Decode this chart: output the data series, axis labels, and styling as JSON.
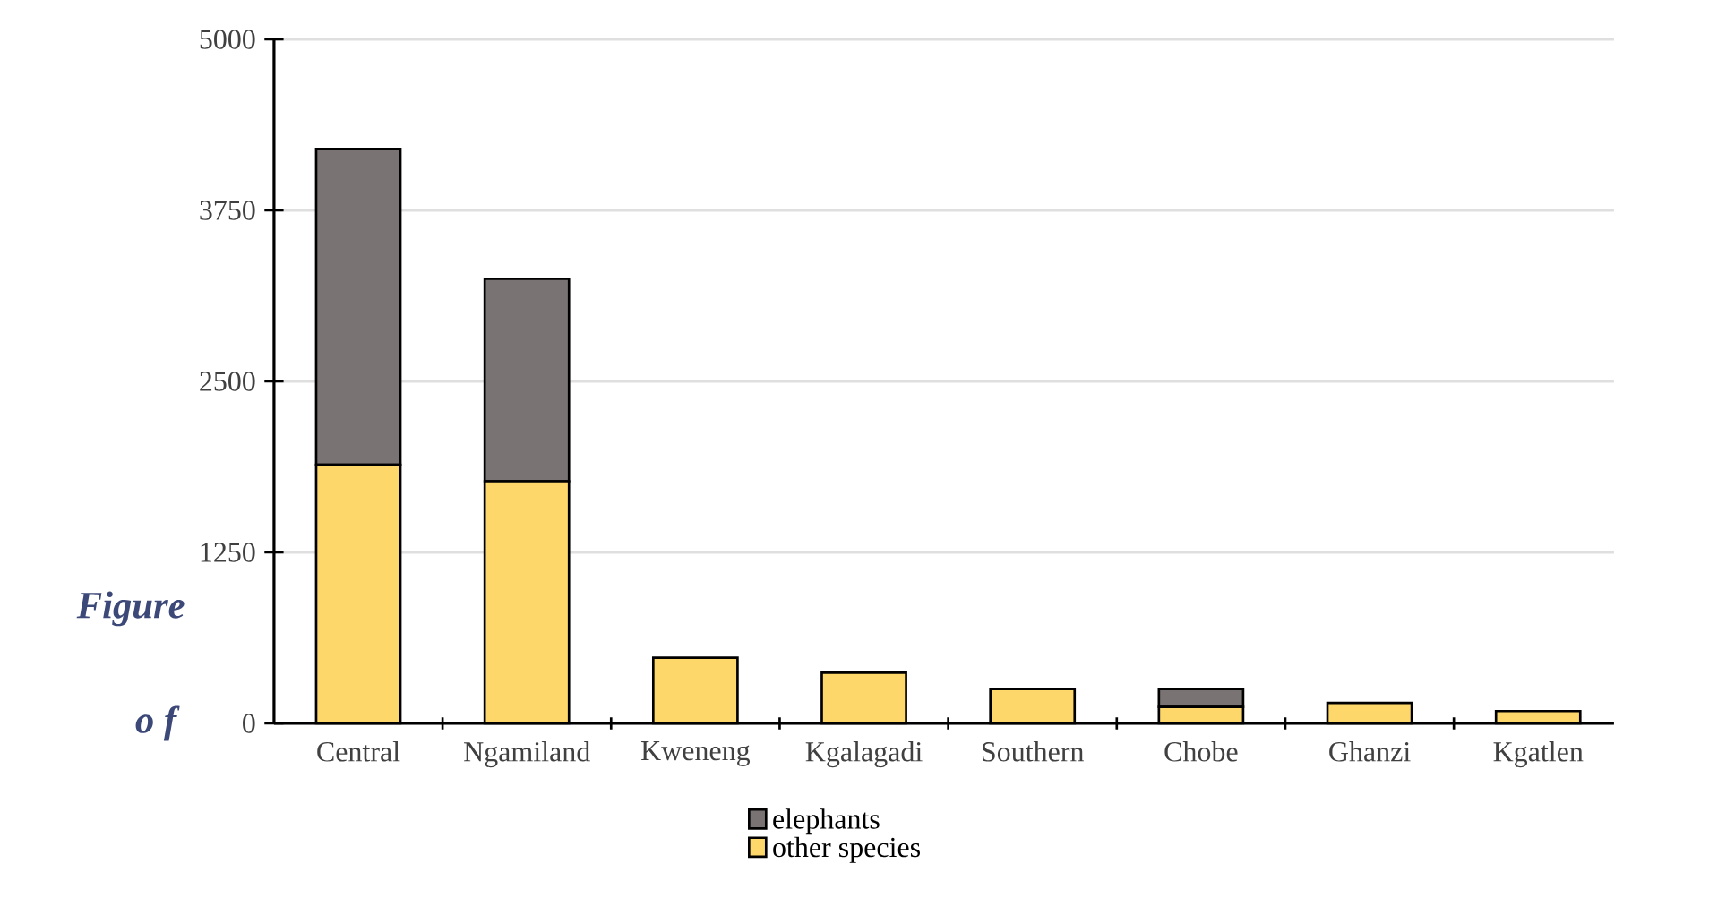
{
  "chart_data": {
    "type": "bar",
    "stacked": true,
    "categories": [
      "Central",
      "Ngamiland",
      "Kweneng",
      "Kgalagadi",
      "Southern",
      "Chobe",
      "Ghanzi",
      "Kgatlen"
    ],
    "series": [
      {
        "name": "other species",
        "color": "#fdd76a",
        "values": [
          1890,
          1770,
          480,
          370,
          250,
          120,
          150,
          90
        ]
      },
      {
        "name": "elephants",
        "color": "#7a7374",
        "values": [
          2310,
          1480,
          0,
          0,
          0,
          130,
          0,
          0
        ]
      }
    ],
    "ylim": [
      0,
      5000
    ],
    "yticks": [
      0,
      1250,
      2500,
      3750,
      5000
    ],
    "grid": "y",
    "legend": "bottom",
    "annotations": [
      "Figure",
      "o f"
    ]
  }
}
